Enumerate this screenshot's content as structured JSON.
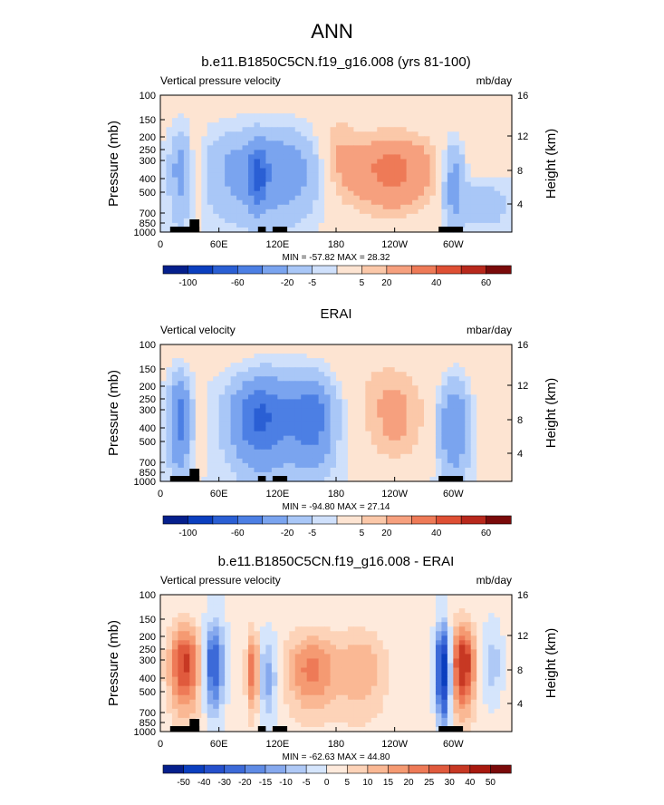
{
  "page_title": "ANN",
  "chart_data": [
    {
      "type": "heatmap",
      "title": "b.e11.B1850C5CN.f19_g16.008 (yrs 81-100)",
      "left_label": "Vertical pressure velocity",
      "right_label": "mb/day",
      "ylabel": "Pressure (mb)",
      "ylabel_right": "Height (km)",
      "x_ticks": [
        "0",
        "60E",
        "120E",
        "180",
        "120W",
        "60W"
      ],
      "x_range": [
        0,
        360
      ],
      "y_ticks": [
        "100",
        "150",
        "200",
        "250",
        "300",
        "400",
        "500",
        "700",
        "850",
        "1000"
      ],
      "y_range": [
        1000,
        100
      ],
      "height_ticks": [
        "16",
        "12",
        "8",
        "4"
      ],
      "stats": "MIN = -57.82  MAX = 28.32",
      "colorbar_labels": [
        "-100",
        "-60",
        "-20",
        "-5",
        "5",
        "20",
        "40",
        "60"
      ],
      "features": [
        {
          "lon": 35,
          "lat": 450,
          "v": 14
        },
        {
          "lon": 20,
          "lat": 500,
          "v": -18
        },
        {
          "lon": 110,
          "lat": 450,
          "v": -30
        },
        {
          "lon": 240,
          "lat": 400,
          "v": 28
        }
      ]
    },
    {
      "type": "heatmap",
      "title": "ERAI",
      "left_label": "Vertical velocity",
      "right_label": "mbar/day",
      "ylabel": "Pressure (mb)",
      "ylabel_right": "Height (km)",
      "x_ticks": [
        "0",
        "60E",
        "120E",
        "180",
        "120W",
        "60W"
      ],
      "x_range": [
        0,
        360
      ],
      "y_ticks": [
        "100",
        "150",
        "200",
        "250",
        "300",
        "400",
        "500",
        "700",
        "850",
        "1000"
      ],
      "y_range": [
        1000,
        100
      ],
      "height_ticks": [
        "16",
        "12",
        "8",
        "4"
      ],
      "stats": "MIN = -94.80  MAX = 27.14",
      "colorbar_labels": [
        "-100",
        "-60",
        "-20",
        "-5",
        "5",
        "20",
        "40",
        "60"
      ],
      "features": [
        {
          "lon": 20,
          "lat": 450,
          "v": -40
        },
        {
          "lon": 100,
          "lat": 400,
          "v": -45
        },
        {
          "lon": 155,
          "lat": 400,
          "v": -40
        },
        {
          "lon": 240,
          "lat": 400,
          "v": 18
        }
      ]
    },
    {
      "type": "heatmap",
      "title": "b.e11.B1850C5CN.f19_g16.008 - ERAI",
      "left_label": "Vertical pressure velocity",
      "right_label": "mb/day",
      "ylabel": "Pressure (mb)",
      "ylabel_right": "Height (km)",
      "x_ticks": [
        "0",
        "60E",
        "120E",
        "180",
        "120W",
        "60W"
      ],
      "x_range": [
        0,
        360
      ],
      "y_ticks": [
        "100",
        "150",
        "200",
        "250",
        "300",
        "400",
        "500",
        "700",
        "850",
        "1000"
      ],
      "y_range": [
        1000,
        100
      ],
      "height_ticks": [
        "16",
        "12",
        "8",
        "4"
      ],
      "stats": "MIN = -62.63  MAX = 44.80",
      "colorbar_labels": [
        "-50",
        "-40",
        "-30",
        "-20",
        "-15",
        "-10",
        "-5",
        "0",
        "5",
        "10",
        "15",
        "20",
        "25",
        "30",
        "40",
        "50"
      ],
      "features": [
        {
          "lon": 25,
          "lat": 400,
          "v": 30
        },
        {
          "lon": 55,
          "lat": 350,
          "v": -30
        },
        {
          "lon": 155,
          "lat": 400,
          "v": 20
        },
        {
          "lon": 290,
          "lat": 400,
          "v": -50
        }
      ]
    }
  ],
  "colors": {
    "abs_scale": [
      "#051f8c",
      "#0b3fbf",
      "#2a5fd4",
      "#4c7fe4",
      "#7aa4ef",
      "#a9c7f7",
      "#cfe0fb",
      "#fde4d2",
      "#fbc8a9",
      "#f6a07e",
      "#ee7a57",
      "#de4f34",
      "#b8281c",
      "#7a0a0a"
    ],
    "diff_scale": [
      "#051f8c",
      "#0b3fbf",
      "#2550cc",
      "#3c6ad8",
      "#5f8be5",
      "#86a9ee",
      "#afc9f6",
      "#d5e5fc",
      "#feeadc",
      "#fdd3b8",
      "#fab894",
      "#f59a72",
      "#ee7a57",
      "#e05a3d",
      "#c73823",
      "#a8190f",
      "#7a0a0a"
    ]
  }
}
